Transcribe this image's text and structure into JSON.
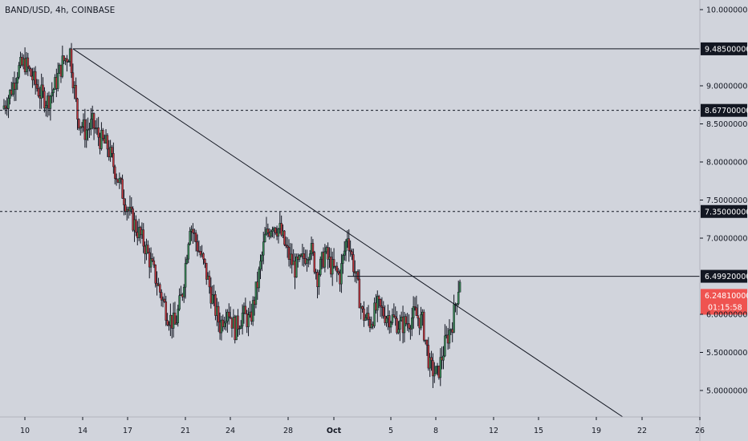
{
  "chart_title": "BAND/USD, 4h, COINBASE",
  "colors": {
    "background": "#d1d4dc",
    "up": "#3b8c57",
    "down": "#c2363c",
    "wick": "#131722",
    "line": "#131722",
    "text": "#131722",
    "last_price_bg": "#ef5350",
    "label_bg": "#131722",
    "label_text": "#ffffff"
  },
  "chart_data": {
    "type": "candlestick",
    "title": "BAND/USD, 4h, COINBASE",
    "ylim": [
      4.6,
      10.0
    ],
    "y_ticks": [
      "5.00000000",
      "5.50000000",
      "6.00000000",
      "7.00000000",
      "7.50000000",
      "8.00000000",
      "8.50000000",
      "9.00000000",
      "10.00000000"
    ],
    "x_ticks": [
      "10",
      "14",
      "17",
      "21",
      "24",
      "28",
      "Oct",
      "5",
      "8",
      "12",
      "15",
      "19",
      "22",
      "26"
    ],
    "horizontal_levels": [
      {
        "price": 9.485,
        "label": "9.48500000",
        "style": "solid"
      },
      {
        "price": 8.677,
        "label": "8.67700000",
        "style": "dashed"
      },
      {
        "price": 7.35,
        "label": "7.35000000",
        "style": "dashed"
      },
      {
        "price": 6.4992,
        "label": "6.49920000",
        "style": "solid"
      }
    ],
    "trendline": {
      "from": {
        "x": "Sep 13",
        "price": 9.485
      },
      "to": {
        "x": "Oct 21",
        "price": 4.6
      }
    },
    "last_price": {
      "value": "6.24810000",
      "countdown": "01:15:58"
    },
    "candles_close_path": [
      [
        0,
        8.7
      ],
      [
        1,
        8.9
      ],
      [
        2,
        9.2
      ],
      [
        3,
        9.3
      ],
      [
        4,
        9.1
      ],
      [
        5,
        8.9
      ],
      [
        6,
        8.8
      ],
      [
        7,
        9.0
      ],
      [
        8,
        9.3
      ],
      [
        9,
        9.45
      ],
      [
        10,
        8.6
      ],
      [
        11,
        8.4
      ],
      [
        12,
        8.5
      ],
      [
        13,
        8.3
      ],
      [
        14,
        8.2
      ],
      [
        15,
        7.9
      ],
      [
        16,
        7.6
      ],
      [
        17,
        7.3
      ],
      [
        18,
        7.1
      ],
      [
        19,
        6.9
      ],
      [
        20,
        6.6
      ],
      [
        21,
        6.3
      ],
      [
        22,
        6.0
      ],
      [
        23,
        5.85
      ],
      [
        24,
        6.3
      ],
      [
        25,
        7.2
      ],
      [
        26,
        6.9
      ],
      [
        27,
        6.6
      ],
      [
        28,
        6.2
      ],
      [
        29,
        5.85
      ],
      [
        30,
        6.1
      ],
      [
        31,
        5.8
      ],
      [
        32,
        6.0
      ],
      [
        33,
        5.9
      ],
      [
        34,
        6.4
      ],
      [
        35,
        7.0
      ],
      [
        36,
        7.2
      ],
      [
        37,
        7.1
      ],
      [
        38,
        6.8
      ],
      [
        39,
        6.6
      ],
      [
        40,
        6.7
      ],
      [
        41,
        6.9
      ],
      [
        42,
        6.5
      ],
      [
        43,
        6.8
      ],
      [
        44,
        6.6
      ],
      [
        45,
        6.5
      ],
      [
        46,
        7.05
      ],
      [
        47,
        6.55
      ],
      [
        48,
        6.0
      ],
      [
        49,
        5.9
      ],
      [
        50,
        6.1
      ],
      [
        51,
        6.0
      ],
      [
        52,
        5.95
      ],
      [
        53,
        5.85
      ],
      [
        54,
        5.9
      ],
      [
        55,
        6.0
      ],
      [
        56,
        5.9
      ],
      [
        57,
        5.3
      ],
      [
        58,
        5.2
      ],
      [
        59,
        5.6
      ],
      [
        60,
        5.9
      ],
      [
        61,
        6.48
      ]
    ]
  }
}
